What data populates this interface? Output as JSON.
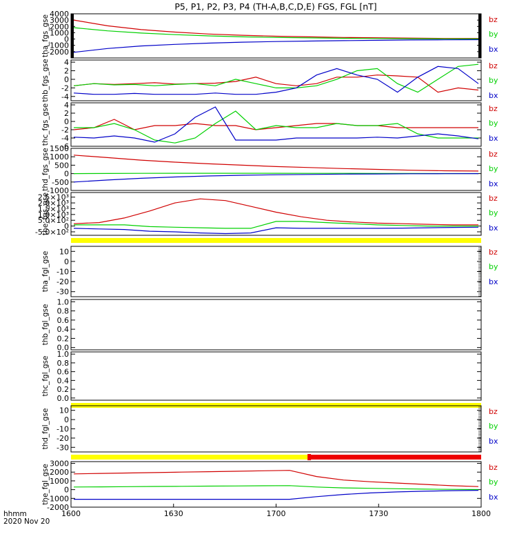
{
  "title": "P5, P1, P2, P3, P4 (TH-A,B,C,D,E) FGS, FGL [nT]",
  "colors": {
    "bz": "#d00000",
    "by": "#00d000",
    "bx": "#0000c8",
    "bar_yellow": "#ffff00",
    "bar_red": "#ee0000",
    "axis": "#000000"
  },
  "footer": {
    "x_units": "hhmm",
    "date": "2020 Nov 20"
  },
  "chart_data": {
    "type": "line",
    "x_range": [
      "16:00",
      "18:00"
    ],
    "x_ticks": [
      "1600",
      "1630",
      "1700",
      "1730",
      "1800"
    ],
    "panels": [
      {
        "name": "tha_fgs_gse",
        "ylabel": "tha_fgs_gse",
        "ylim": [
          -3000,
          4000
        ],
        "yticks": [
          -2000,
          -1000,
          0,
          1000,
          2000,
          3000,
          4000
        ],
        "ytick_labels": [
          "-2000",
          "-1000",
          "0",
          "1000",
          "2000",
          "3000",
          "4000"
        ],
        "legend": [
          "bz",
          "by",
          "bx"
        ],
        "series": [
          {
            "name": "bz",
            "values": [
              3000,
              2100,
              1500,
              1100,
              800,
              600,
              450,
              350,
              250,
              200,
              150,
              100,
              100
            ]
          },
          {
            "name": "by",
            "values": [
              1800,
              1300,
              950,
              700,
              500,
              350,
              250,
              180,
              120,
              80,
              50,
              30,
              20
            ]
          },
          {
            "name": "bx",
            "values": [
              -2100,
              -1500,
              -1100,
              -850,
              -650,
              -500,
              -400,
              -320,
              -260,
              -200,
              -150,
              -120,
              -100
            ]
          }
        ],
        "edge_bars": true
      },
      {
        "name": "thb_fgs_gse",
        "ylabel": "thb_fgs_gse",
        "ylim": [
          -5,
          4.5
        ],
        "yticks": [
          -4,
          -2,
          0,
          2,
          4
        ],
        "ytick_labels": [
          "-4",
          "-2",
          "0",
          "2",
          "4"
        ],
        "legend": [
          "bz",
          "by",
          "bx"
        ],
        "series": [
          {
            "name": "bz",
            "values": [
              -1.5,
              -1,
              -1.2,
              -1,
              -0.8,
              -1.1,
              -1,
              -0.9,
              -0.5,
              0.5,
              -1,
              -1.5,
              -1,
              0.5,
              0.5,
              1,
              0.8,
              0.5,
              -3,
              -2,
              -2.5
            ]
          },
          {
            "name": "by",
            "values": [
              -1.5,
              -1,
              -1.3,
              -1.2,
              -1.5,
              -1.2,
              -1,
              -1.5,
              0,
              -1,
              -2,
              -2,
              -1.5,
              0,
              2,
              2.5,
              -1,
              -3,
              0,
              3,
              3.5
            ]
          },
          {
            "name": "bx",
            "values": [
              -3.2,
              -3.5,
              -3.5,
              -3.3,
              -3.5,
              -3.5,
              -3.5,
              -3.2,
              -3.5,
              -3.5,
              -3,
              -2,
              1,
              2.5,
              1,
              0,
              -3,
              0.5,
              3,
              2.5,
              -1
            ]
          }
        ]
      },
      {
        "name": "thc_fgs_gse",
        "ylabel": "thc_fgs_gse",
        "ylim": [
          -6,
          4.5
        ],
        "yticks": [
          -6,
          -4,
          -2,
          0,
          2,
          4
        ],
        "ytick_labels": [
          "-6",
          "-4",
          "-2",
          "0",
          "2",
          "4"
        ],
        "legend": [
          "bz",
          "by",
          "bx"
        ],
        "series": [
          {
            "name": "bz",
            "values": [
              -2,
              -1.5,
              0.5,
              -2,
              -1,
              -1,
              -0.5,
              -1,
              -1,
              -2,
              -1.5,
              -1,
              -0.5,
              -0.5,
              -1,
              -1,
              -1.5,
              -1.5,
              -1.5,
              -1.5,
              -1.5
            ]
          },
          {
            "name": "by",
            "values": [
              -1.5,
              -1.5,
              -0.5,
              -2,
              -4.5,
              -5.2,
              -4,
              -0.5,
              2.5,
              -2,
              -1,
              -1.5,
              -1.5,
              -0.5,
              -1,
              -1,
              -0.5,
              -3,
              -4,
              -4,
              -4
            ]
          },
          {
            "name": "bx",
            "values": [
              -3.8,
              -4,
              -3.5,
              -4,
              -5,
              -3,
              1,
              3.5,
              -4.5,
              -4.5,
              -4.5,
              -4,
              -4,
              -4,
              -4,
              -3.8,
              -4,
              -3.5,
              -3,
              -3.5,
              -4.2
            ]
          }
        ]
      },
      {
        "name": "thd_fgs_gse",
        "ylabel": "thd_fgs_gse",
        "ylim": [
          -1000,
          1500
        ],
        "yticks": [
          -1000,
          -500,
          0,
          500,
          1000,
          1500
        ],
        "ytick_labels": [
          "-1000",
          "-500",
          "0",
          "500",
          "1000",
          "1500"
        ],
        "legend": [
          "bz",
          "by",
          "bx"
        ],
        "series": [
          {
            "name": "bz",
            "values": [
              1100,
              950,
              800,
              680,
              580,
              500,
              420,
              360,
              300,
              250,
              200,
              170,
              150
            ]
          },
          {
            "name": "by",
            "values": [
              0,
              10,
              15,
              20,
              20,
              20,
              20,
              15,
              15,
              10,
              10,
              5,
              5
            ]
          },
          {
            "name": "bx",
            "values": [
              -500,
              -380,
              -280,
              -200,
              -140,
              -100,
              -70,
              -50,
              -30,
              -20,
              -10,
              -5,
              0
            ]
          }
        ]
      },
      {
        "name": "the_fgs_gse",
        "ylabel": "the_fgs_gse",
        "ylim": [
          -800,
          2900
        ],
        "yticks": [
          -500,
          0,
          500,
          1000,
          1500,
          2000,
          2500
        ],
        "ytick_labels": [
          "-5.0×10²",
          "0",
          "5.0×10²",
          "1.0×10³",
          "1.5×10³",
          "2.0×10³",
          "2.5×10³"
        ],
        "legend": [
          "bz",
          "by",
          "bx"
        ],
        "series": [
          {
            "name": "bz",
            "values": [
              200,
              300,
              700,
              1300,
              2000,
              2350,
              2200,
              1700,
              1200,
              800,
              500,
              350,
              250,
              200,
              150,
              100,
              100
            ]
          },
          {
            "name": "by",
            "values": [
              100,
              100,
              100,
              -50,
              -100,
              -150,
              -200,
              -200,
              400,
              400,
              300,
              200,
              100,
              50,
              0,
              0,
              0
            ]
          },
          {
            "name": "bx",
            "values": [
              -200,
              -250,
              -300,
              -450,
              -500,
              -600,
              -650,
              -600,
              -150,
              -200,
              -200,
              -200,
              -200,
              -180,
              -150,
              -120,
              -100
            ]
          }
        ],
        "bar_below": "yellow"
      },
      {
        "name": "tha_fgl_gse",
        "ylabel": "tha_fgl_gse",
        "ylim": [
          -35,
          15
        ],
        "yticks": [
          -30,
          -20,
          -10,
          0,
          10
        ],
        "ytick_labels": [
          "-30",
          "-20",
          "-10",
          "0",
          "10"
        ],
        "legend": [
          "bz",
          "by",
          "bx"
        ],
        "series": [],
        "right_ticks": true
      },
      {
        "name": "thb_fgl_gse",
        "ylabel": "thb_fgl_gse",
        "ylim": [
          -0.05,
          1.05
        ],
        "yticks": [
          0,
          0.2,
          0.4,
          0.6,
          0.8,
          1.0
        ],
        "ytick_labels": [
          "0.0",
          "0.2",
          "0.4",
          "0.6",
          "0.8",
          "1.0"
        ],
        "legend": [],
        "series": []
      },
      {
        "name": "thc_fgl_gse",
        "ylabel": "thc_fgl_gse",
        "ylim": [
          -0.05,
          1.05
        ],
        "yticks": [
          0,
          0.2,
          0.4,
          0.6,
          0.8,
          1.0
        ],
        "ytick_labels": [
          "0.0",
          "0.2",
          "0.4",
          "0.6",
          "0.8",
          "1.0"
        ],
        "legend": [],
        "series": [],
        "bar_below": "yellow"
      },
      {
        "name": "thd_fgl_gse",
        "ylabel": "thd_fgl_gse",
        "ylim": [
          -35,
          15
        ],
        "yticks": [
          -30,
          -20,
          -10,
          0,
          10
        ],
        "ytick_labels": [
          "-30",
          "-20",
          "-10",
          "0",
          "10"
        ],
        "legend": [
          "bz",
          "by",
          "bx"
        ],
        "series": [],
        "right_ticks": true,
        "bar_below": "yellow_red",
        "bar_split_fraction": 0.58
      },
      {
        "name": "the_fgl_gse",
        "ylabel": "the_fgl_gse",
        "ylim": [
          -2000,
          3200
        ],
        "yticks": [
          -2000,
          -1000,
          0,
          1000,
          2000,
          3000
        ],
        "ytick_labels": [
          "-2000",
          "-1000",
          "0",
          "1000",
          "2000",
          "3000"
        ],
        "legend": [
          "bz",
          "by",
          "bx"
        ],
        "series": [
          {
            "name": "bz",
            "values": [
              1800,
              1850,
              1900,
              1950,
              2000,
              2050,
              2100,
              2150,
              2200,
              1500,
              1100,
              900,
              750,
              600,
              450,
              350
            ]
          },
          {
            "name": "by",
            "values": [
              300,
              320,
              340,
              360,
              380,
              400,
              420,
              440,
              460,
              300,
              200,
              150,
              100,
              60,
              30,
              10
            ]
          },
          {
            "name": "bx",
            "values": [
              -1100,
              -1100,
              -1100,
              -1100,
              -1100,
              -1100,
              -1100,
              -1100,
              -1100,
              -800,
              -550,
              -380,
              -260,
              -180,
              -120,
              -80
            ]
          }
        ]
      }
    ]
  }
}
